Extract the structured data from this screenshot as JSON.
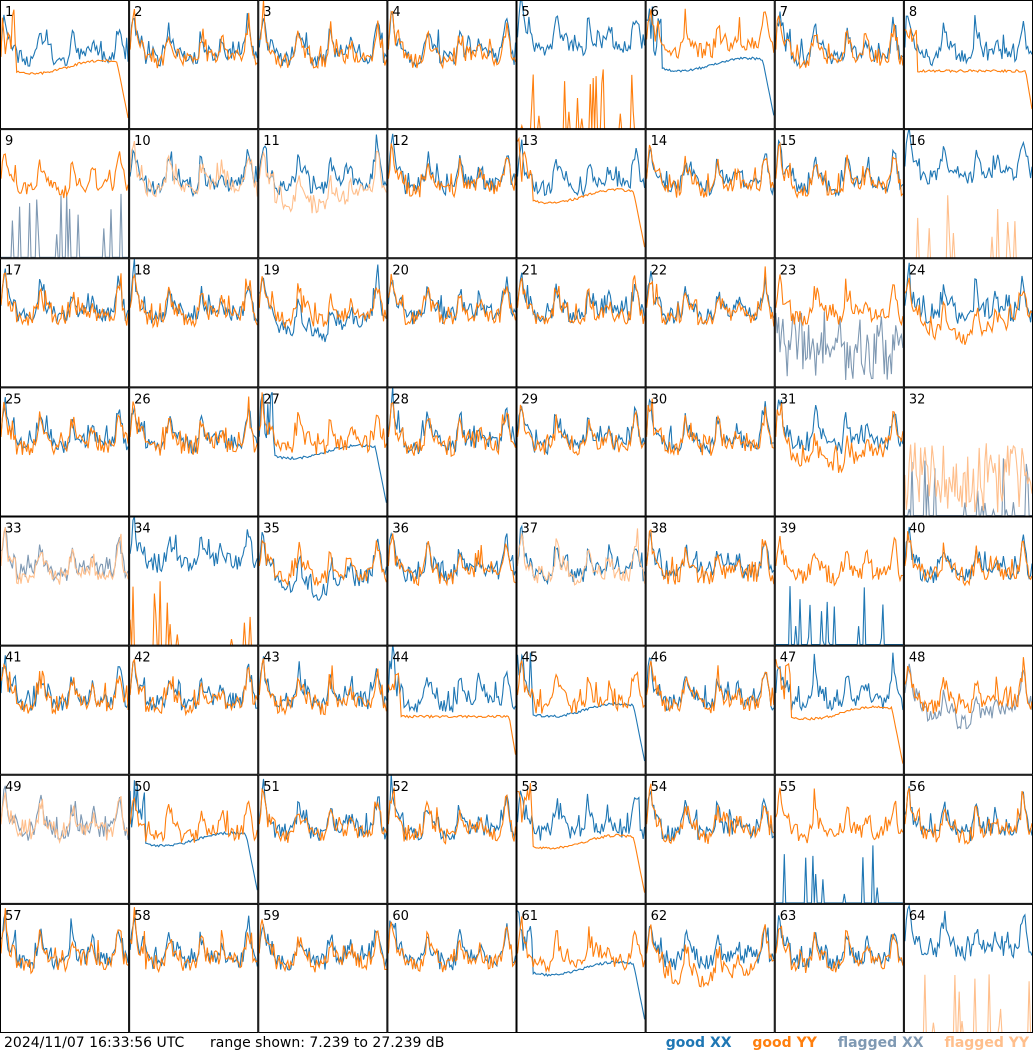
{
  "footer": {
    "timestamp": "2024/11/07 16:33:56 UTC",
    "range_text": "range shown: 7.239 to 27.239 dB"
  },
  "chart_data": {
    "type": "line",
    "layout": "small-multiples 8x8",
    "yrange_db": [
      7.239,
      27.239
    ],
    "legend": [
      {
        "label_status": "good",
        "label_pol": "XX",
        "color": "#1f77b4"
      },
      {
        "label_status": "good",
        "label_pol": "YY",
        "color": "#ff7f0e"
      },
      {
        "label_status": "flagged",
        "label_pol": "XX",
        "color": "#7f99b3"
      },
      {
        "label_status": "flagged",
        "label_pol": "YY",
        "color": "#ffbf8c"
      }
    ],
    "panels": [
      {
        "id": "1",
        "xx": "good",
        "yy": "good",
        "xx_shape": "normal",
        "yy_shape": "dropflat"
      },
      {
        "id": "2",
        "xx": "good",
        "yy": "good"
      },
      {
        "id": "3",
        "xx": "good",
        "yy": "good"
      },
      {
        "id": "4",
        "xx": "good",
        "yy": "good"
      },
      {
        "id": "5",
        "xx": "good",
        "yy": "good",
        "xx_shape": "high",
        "yy_shape": "spikes"
      },
      {
        "id": "6",
        "xx": "good",
        "yy": "good",
        "xx_shape": "dropflat",
        "yy_shape": "high"
      },
      {
        "id": "7",
        "xx": "good",
        "yy": "good"
      },
      {
        "id": "8",
        "xx": "good",
        "yy": "good",
        "yy_shape": "flat"
      },
      {
        "id": "9",
        "xx": "flagged",
        "yy": "good",
        "xx_shape": "spikes"
      },
      {
        "id": "10",
        "xx": "good",
        "yy": "flagged"
      },
      {
        "id": "11",
        "xx": "good",
        "yy": "flagged",
        "yy_shape": "low"
      },
      {
        "id": "12",
        "xx": "good",
        "yy": "good"
      },
      {
        "id": "13",
        "xx": "good",
        "yy": "good",
        "yy_shape": "dropflat"
      },
      {
        "id": "14",
        "xx": "good",
        "yy": "good"
      },
      {
        "id": "15",
        "xx": "good",
        "yy": "good"
      },
      {
        "id": "16",
        "xx": "good",
        "yy": "flagged",
        "xx_shape": "high",
        "yy_shape": "spikes"
      },
      {
        "id": "17",
        "xx": "good",
        "yy": "good"
      },
      {
        "id": "18",
        "xx": "good",
        "yy": "good"
      },
      {
        "id": "19",
        "xx": "good",
        "yy": "good",
        "xx_shape": "low"
      },
      {
        "id": "20",
        "xx": "good",
        "yy": "good"
      },
      {
        "id": "21",
        "xx": "good",
        "yy": "good"
      },
      {
        "id": "22",
        "xx": "good",
        "yy": "good"
      },
      {
        "id": "23",
        "xx": "flagged",
        "yy": "good",
        "xx_shape": "noisy"
      },
      {
        "id": "24",
        "xx": "good",
        "yy": "good",
        "yy_shape": "low"
      },
      {
        "id": "25",
        "xx": "good",
        "yy": "good"
      },
      {
        "id": "26",
        "xx": "good",
        "yy": "good"
      },
      {
        "id": "27",
        "xx": "good",
        "yy": "good",
        "xx_shape": "dropflat"
      },
      {
        "id": "28",
        "xx": "good",
        "yy": "good"
      },
      {
        "id": "29",
        "xx": "good",
        "yy": "good"
      },
      {
        "id": "30",
        "xx": "good",
        "yy": "good"
      },
      {
        "id": "31",
        "xx": "good",
        "yy": "good",
        "yy_shape": "low"
      },
      {
        "id": "32",
        "xx": "flagged",
        "yy": "flagged",
        "xx_shape": "spikes",
        "yy_shape": "noisy"
      },
      {
        "id": "33",
        "xx": "flagged",
        "yy": "flagged"
      },
      {
        "id": "34",
        "xx": "good",
        "yy": "good",
        "xx_shape": "high",
        "yy_shape": "spikes"
      },
      {
        "id": "35",
        "xx": "good",
        "yy": "good",
        "xx_shape": "low"
      },
      {
        "id": "36",
        "xx": "good",
        "yy": "good"
      },
      {
        "id": "37",
        "xx": "good",
        "yy": "flagged"
      },
      {
        "id": "38",
        "xx": "good",
        "yy": "good"
      },
      {
        "id": "39",
        "xx": "good",
        "yy": "good",
        "xx_shape": "spikes"
      },
      {
        "id": "40",
        "xx": "good",
        "yy": "good"
      },
      {
        "id": "41",
        "xx": "good",
        "yy": "good"
      },
      {
        "id": "42",
        "xx": "good",
        "yy": "good"
      },
      {
        "id": "43",
        "xx": "good",
        "yy": "good"
      },
      {
        "id": "44",
        "xx": "good",
        "yy": "good",
        "yy_shape": "flat"
      },
      {
        "id": "45",
        "xx": "good",
        "yy": "good",
        "xx_shape": "dropflat"
      },
      {
        "id": "46",
        "xx": "good",
        "yy": "good"
      },
      {
        "id": "47",
        "xx": "good",
        "yy": "good",
        "yy_shape": "dropflat"
      },
      {
        "id": "48",
        "xx": "flagged",
        "yy": "good",
        "xx_shape": "low"
      },
      {
        "id": "49",
        "xx": "flagged",
        "yy": "flagged"
      },
      {
        "id": "50",
        "xx": "good",
        "yy": "good",
        "xx_shape": "dropflat"
      },
      {
        "id": "51",
        "xx": "good",
        "yy": "good"
      },
      {
        "id": "52",
        "xx": "good",
        "yy": "good"
      },
      {
        "id": "53",
        "xx": "good",
        "yy": "good",
        "yy_shape": "dropflat"
      },
      {
        "id": "54",
        "xx": "good",
        "yy": "good"
      },
      {
        "id": "55",
        "xx": "good",
        "yy": "good",
        "xx_shape": "spikes"
      },
      {
        "id": "56",
        "xx": "good",
        "yy": "good"
      },
      {
        "id": "57",
        "xx": "good",
        "yy": "good"
      },
      {
        "id": "58",
        "xx": "good",
        "yy": "good"
      },
      {
        "id": "59",
        "xx": "good",
        "yy": "good"
      },
      {
        "id": "60",
        "xx": "good",
        "yy": "good"
      },
      {
        "id": "61",
        "xx": "good",
        "yy": "good",
        "xx_shape": "dropflat"
      },
      {
        "id": "62",
        "xx": "good",
        "yy": "good",
        "yy_shape": "low"
      },
      {
        "id": "63",
        "xx": "good",
        "yy": "good"
      },
      {
        "id": "64",
        "xx": "good",
        "yy": "flagged",
        "xx_shape": "high",
        "yy_shape": "spikes"
      }
    ]
  }
}
